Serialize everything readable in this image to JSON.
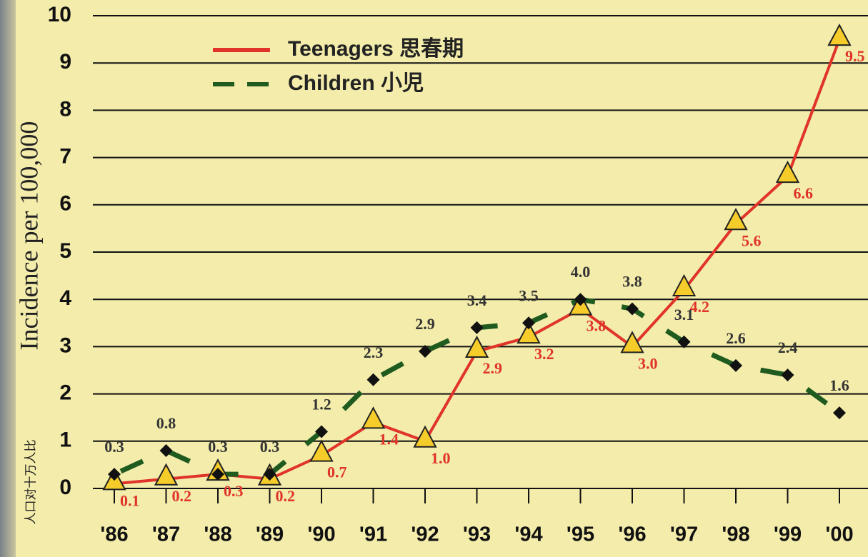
{
  "chart_data": {
    "type": "line",
    "ylabel": "Incidence per 100,000",
    "ylabel_secondary": "人口对十万人比",
    "categories": [
      "'86",
      "'87",
      "'88",
      "'89",
      "'90",
      "'91",
      "'92",
      "'93",
      "'94",
      "'95",
      "'96",
      "'97",
      "'98",
      "'99",
      "'00"
    ],
    "series": [
      {
        "name": "Teenagers 思春期",
        "color": "#e0332a",
        "marker": "triangle",
        "values": [
          0.1,
          0.2,
          0.3,
          0.2,
          0.7,
          1.4,
          1.0,
          2.9,
          3.2,
          3.8,
          3.0,
          4.2,
          5.6,
          6.6,
          9.5
        ],
        "value_labels": [
          "0.1",
          "0.2",
          "0.3",
          "0.2",
          "0.7",
          "1.4",
          "1.0",
          "2.9",
          "3.2",
          "3.8",
          "3.0",
          "4.2",
          "5.6",
          "6.6",
          "9.5"
        ]
      },
      {
        "name": "Children 小児",
        "color": "#1f5a1f",
        "marker": "diamond",
        "dashed": true,
        "values": [
          0.3,
          0.8,
          0.3,
          0.3,
          1.2,
          2.3,
          2.9,
          3.4,
          3.5,
          4.0,
          3.8,
          3.1,
          2.6,
          2.4,
          1.6
        ],
        "value_labels": [
          "0.3",
          "0.8",
          "0.3",
          "0.3",
          "1.2",
          "2.3",
          "2.9",
          "3.4",
          "3.5",
          "4.0",
          "3.8",
          "3.1",
          "2.6",
          "2.4",
          "1.6"
        ]
      }
    ],
    "ylim": [
      0,
      10
    ],
    "yticks": [
      0,
      1,
      2,
      3,
      4,
      5,
      6,
      7,
      8,
      9,
      10
    ],
    "grid": true
  }
}
